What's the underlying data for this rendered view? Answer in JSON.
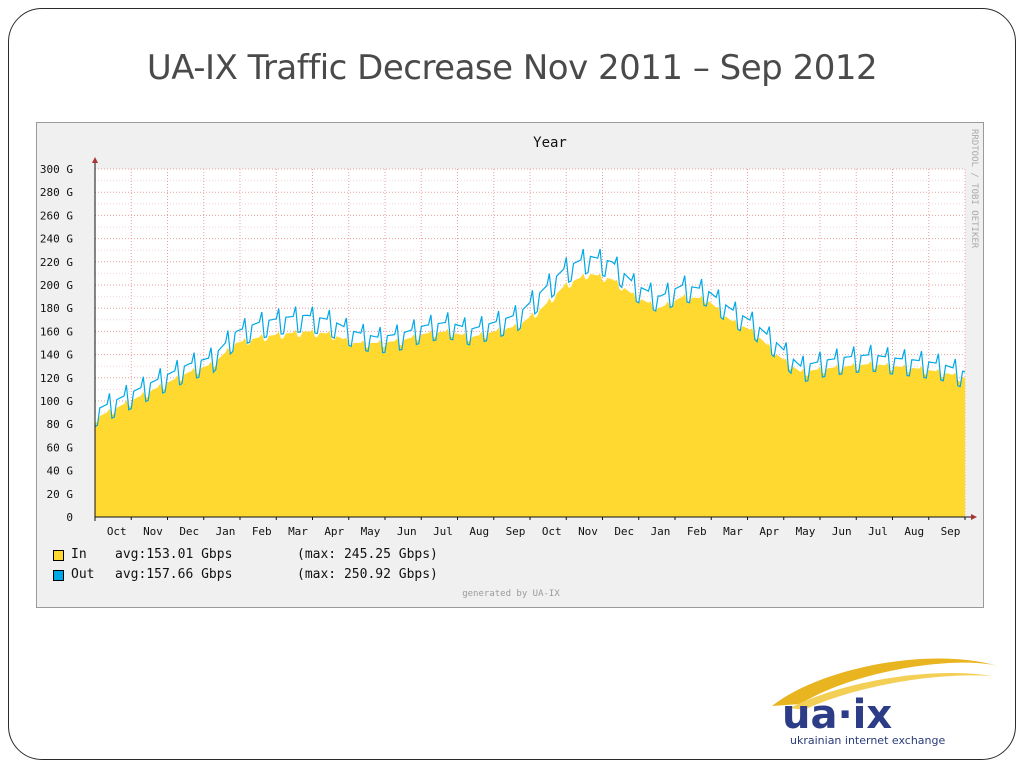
{
  "slide": {
    "title": "UA-IX Traffic Decrease Nov 2011 – Sep 2012",
    "logo_text": "ua·ix",
    "logo_tagline": "ukrainian internet exchange",
    "colors": {
      "logo_blue": "#2d3c86",
      "logo_gold": "#e8b41f",
      "frame": "#2b2b2b"
    }
  },
  "chart_data": {
    "type": "area",
    "title": "Year",
    "side_credit": "RRDTOOL / TOBI OETIKER",
    "generated_by": "generated by UA-IX",
    "x_ticks": [
      "Oct",
      "Nov",
      "Dec",
      "Jan",
      "Feb",
      "Mar",
      "Apr",
      "May",
      "Jun",
      "Jul",
      "Aug",
      "Sep",
      "Oct",
      "Nov",
      "Dec",
      "Jan",
      "Feb",
      "Mar",
      "Apr",
      "May",
      "Jun",
      "Jul",
      "Aug",
      "Sep"
    ],
    "y_ticks": [
      "0",
      "20 G",
      "40 G",
      "60 G",
      "80 G",
      "100 G",
      "120 G",
      "140 G",
      "160 G",
      "180 G",
      "200 G",
      "220 G",
      "240 G",
      "260 G",
      "280 G",
      "300 G"
    ],
    "ylim": [
      0,
      300
    ],
    "grid": true,
    "series": [
      {
        "name": "In",
        "color": "#ffd830",
        "stats": "avg:153.01 Gbps",
        "max": "(max: 245.25 Gbps)",
        "values": [
          85,
          95,
          105,
          115,
          125,
          132,
          150,
          155,
          158,
          160,
          158,
          150,
          150,
          152,
          158,
          160,
          155,
          160,
          165,
          180,
          200,
          210,
          205,
          190,
          180,
          190,
          188,
          170,
          160,
          140,
          125,
          128,
          130,
          132,
          130,
          128,
          125,
          120
        ]
      },
      {
        "name": "Out",
        "color": "#00a8e8",
        "stats": "avg:157.66 Gbps",
        "max": "(max: 250.92 Gbps)",
        "values": [
          92,
          102,
          112,
          122,
          132,
          138,
          160,
          168,
          172,
          174,
          170,
          160,
          155,
          158,
          165,
          168,
          162,
          168,
          175,
          195,
          215,
          225,
          220,
          200,
          190,
          200,
          196,
          180,
          168,
          150,
          130,
          135,
          138,
          140,
          137,
          135,
          132,
          125
        ]
      }
    ]
  }
}
